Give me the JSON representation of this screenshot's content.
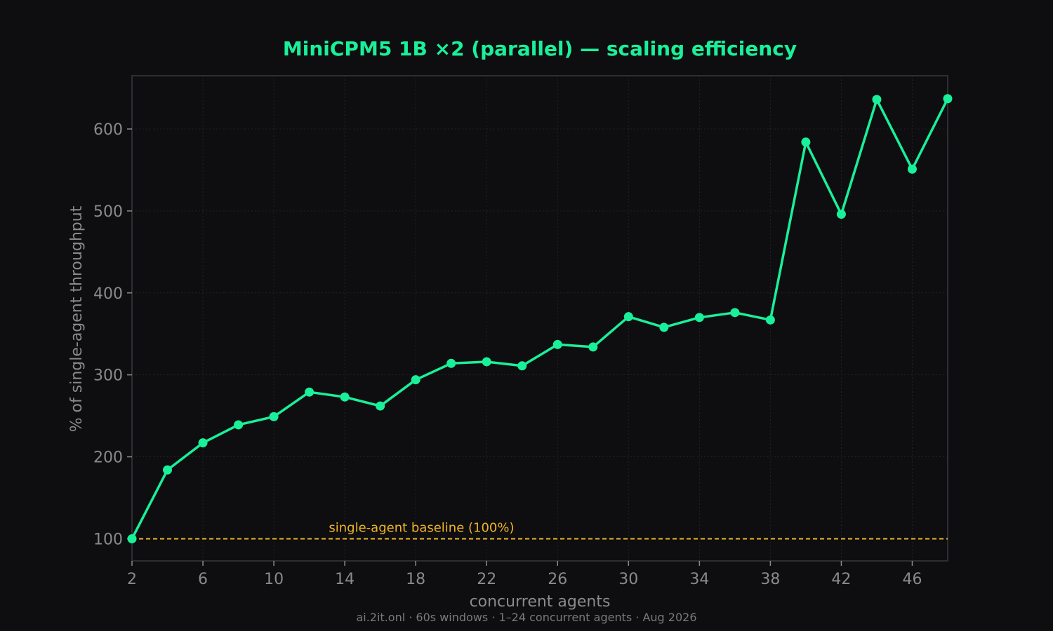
{
  "chart_data": {
    "type": "line",
    "title": "MiniCPM5 1B ×2 (parallel) — scaling efficiency",
    "xlabel": "concurrent agents",
    "ylabel": "% of single-agent throughput",
    "footer": "ai.2it.onl · 60s windows · 1–24 concurrent agents · Aug 2026",
    "xlim": [
      2,
      48
    ],
    "ylim": [
      73,
      665
    ],
    "x_ticks": [
      2,
      6,
      10,
      14,
      18,
      22,
      26,
      30,
      34,
      38,
      42,
      46
    ],
    "y_ticks": [
      100,
      200,
      300,
      400,
      500,
      600
    ],
    "grid": true,
    "x": [
      2,
      4,
      6,
      8,
      10,
      12,
      14,
      16,
      18,
      20,
      22,
      24,
      26,
      28,
      30,
      32,
      34,
      36,
      38,
      40,
      42,
      44,
      46,
      48
    ],
    "series": [
      {
        "values": [
          100,
          184,
          217,
          239,
          249,
          279,
          273,
          262,
          294,
          314,
          316,
          311,
          337,
          334,
          371,
          358,
          370,
          376,
          367,
          584,
          496,
          636,
          551,
          637
        ]
      }
    ],
    "baseline": {
      "value": 100,
      "label": "single-agent baseline (100%)"
    },
    "colors": {
      "background": "#0e0e10",
      "line": "#19f09a",
      "title": "#19f09a",
      "baseline": "#f0b429",
      "axis_text": "#8a8a8a",
      "frame": "#2e2e32",
      "grid": "#232327",
      "footer": "#7a7a7a"
    }
  }
}
